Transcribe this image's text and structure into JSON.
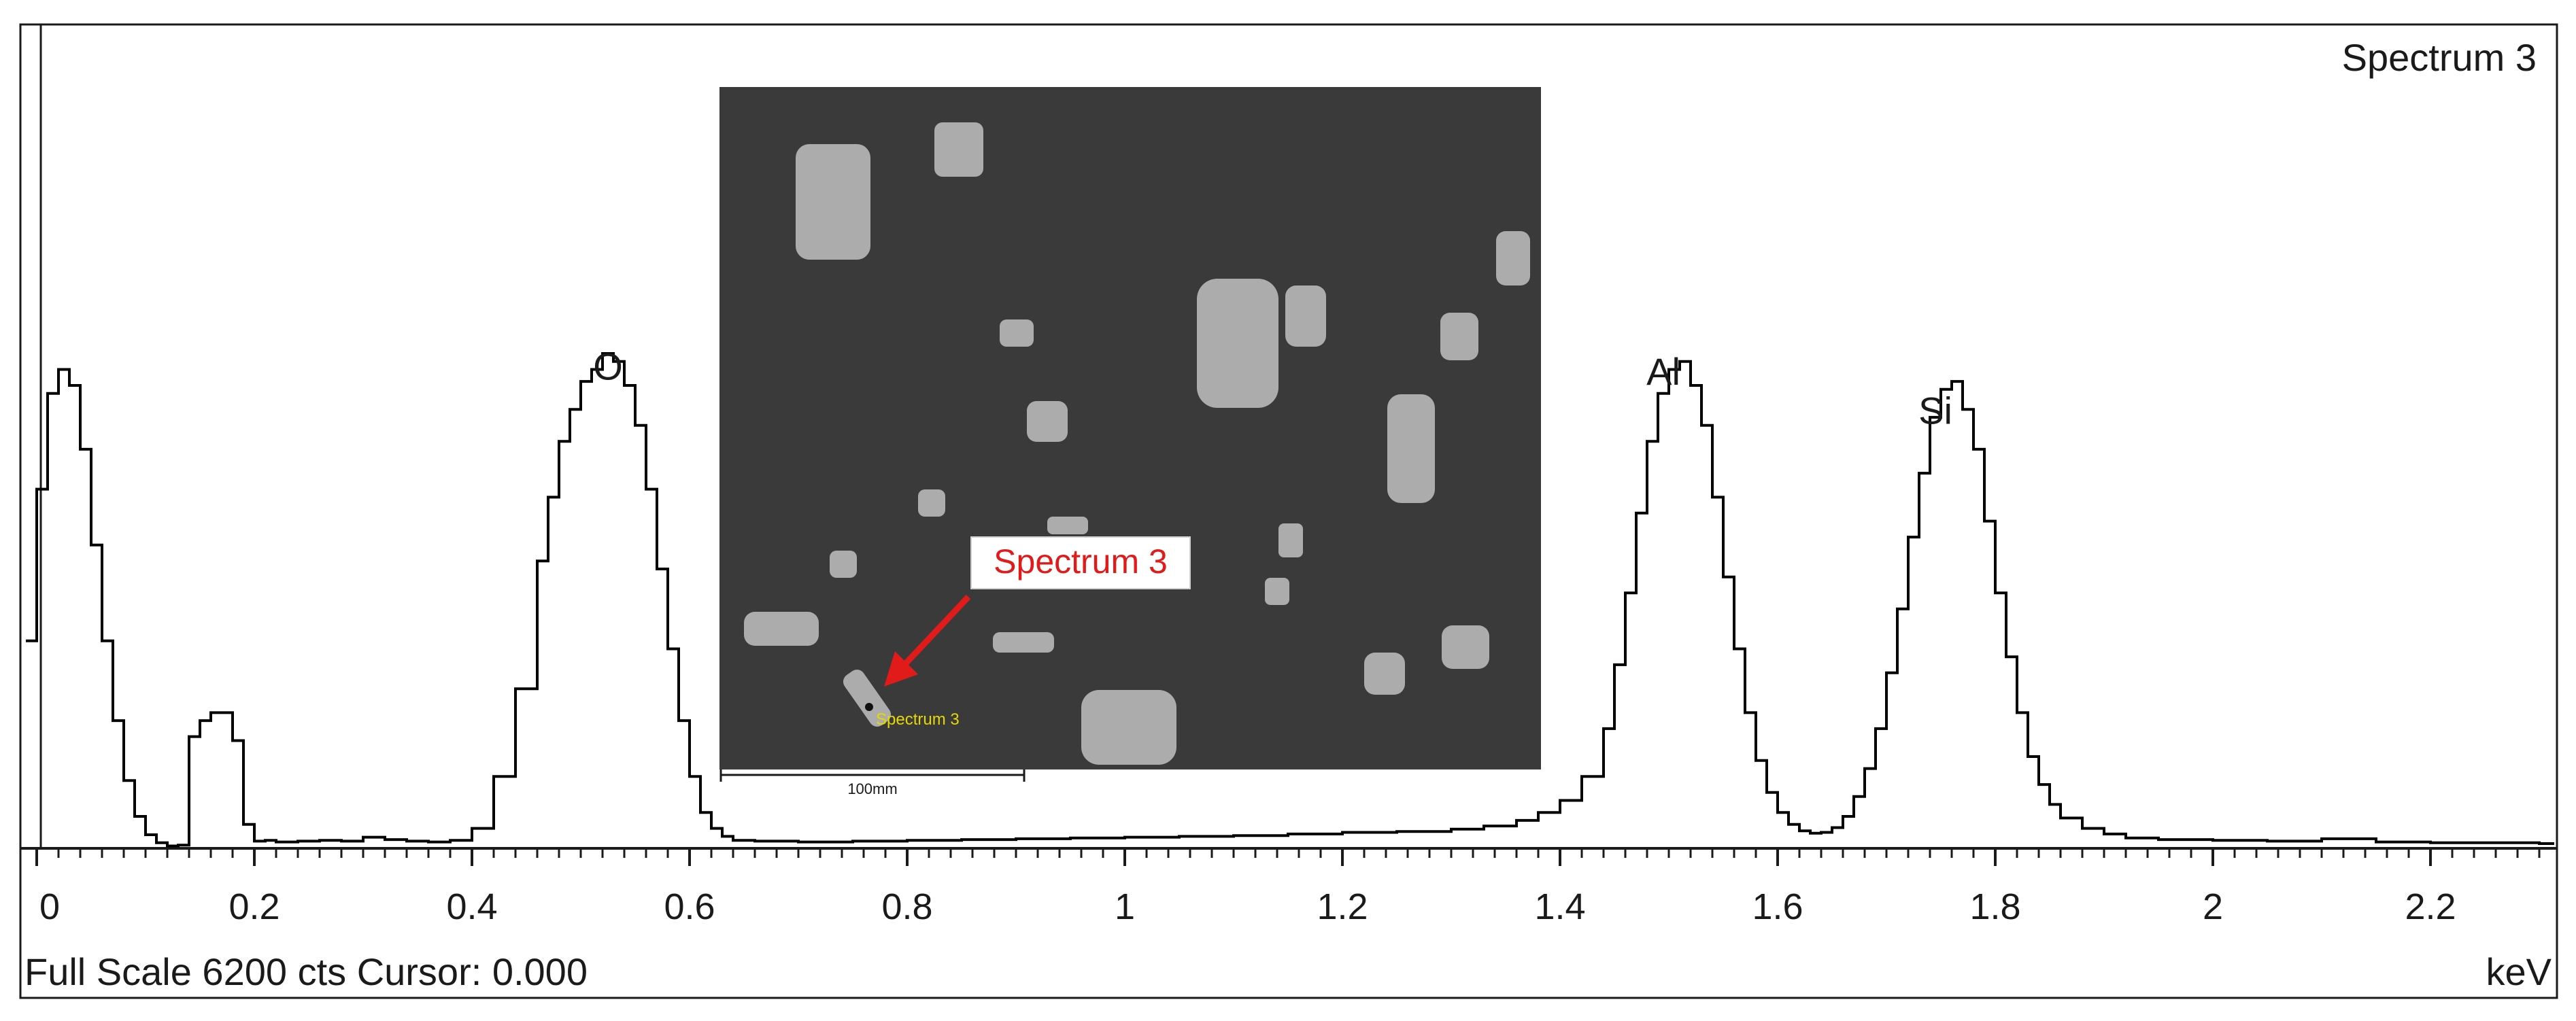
{
  "chart_data": {
    "type": "line",
    "title": "Spectrum 3",
    "xlabel": "keV",
    "ylabel": "",
    "xlim": [
      0,
      2.32
    ],
    "ylim": [
      0,
      6200
    ],
    "x_ticks": [
      "0",
      "0.2",
      "0.4",
      "0.6",
      "0.8",
      "1",
      "1.2",
      "1.4",
      "1.6",
      "1.8",
      "2",
      "2.2"
    ],
    "x_tick_values": [
      0,
      0.2,
      0.4,
      0.6,
      0.8,
      1.0,
      1.2,
      1.4,
      1.6,
      1.8,
      2.0,
      2.2
    ],
    "footer": "Full Scale 6200 cts Cursor: 0.000",
    "peak_labels": [
      {
        "text": "O",
        "x": 0.525,
        "y": 5700
      },
      {
        "text": "Al",
        "x": 1.495,
        "y": 5640
      },
      {
        "text": "Si",
        "x": 1.745,
        "y": 5150
      }
    ],
    "series": [
      {
        "x": [
          -0.01,
          0.0,
          0.01,
          0.02,
          0.03,
          0.04,
          0.05,
          0.06,
          0.07,
          0.08,
          0.09,
          0.1,
          0.11,
          0.12,
          0.13,
          0.14,
          0.15,
          0.16,
          0.17,
          0.18,
          0.19,
          0.2,
          0.21,
          0.22,
          0.24,
          0.26,
          0.28,
          0.3,
          0.32,
          0.34,
          0.36,
          0.38,
          0.4,
          0.42,
          0.44,
          0.46,
          0.47,
          0.48,
          0.49,
          0.5,
          0.51,
          0.52,
          0.53,
          0.54,
          0.55,
          0.56,
          0.57,
          0.58,
          0.59,
          0.6,
          0.61,
          0.62,
          0.63,
          0.64,
          0.66,
          0.7,
          0.75,
          0.8,
          0.85,
          0.9,
          0.95,
          1.0,
          1.05,
          1.1,
          1.15,
          1.2,
          1.25,
          1.3,
          1.33,
          1.36,
          1.38,
          1.4,
          1.42,
          1.44,
          1.45,
          1.46,
          1.47,
          1.48,
          1.49,
          1.5,
          1.51,
          1.52,
          1.53,
          1.54,
          1.55,
          1.56,
          1.57,
          1.58,
          1.59,
          1.6,
          1.61,
          1.62,
          1.63,
          1.64,
          1.65,
          1.66,
          1.67,
          1.68,
          1.69,
          1.7,
          1.71,
          1.72,
          1.73,
          1.74,
          1.75,
          1.76,
          1.77,
          1.78,
          1.79,
          1.8,
          1.81,
          1.82,
          1.83,
          1.84,
          1.85,
          1.86,
          1.88,
          1.9,
          1.92,
          1.95,
          2.0,
          2.05,
          2.1,
          2.15,
          2.2,
          2.25,
          2.3,
          2.32
        ],
        "y": [
          2600,
          4500,
          5700,
          6000,
          5800,
          5000,
          3800,
          2600,
          1600,
          850,
          400,
          170,
          70,
          30,
          40,
          1400,
          1600,
          1700,
          1700,
          1350,
          300,
          90,
          100,
          80,
          90,
          100,
          90,
          140,
          110,
          90,
          80,
          100,
          250,
          900,
          2000,
          3600,
          4400,
          5100,
          5500,
          5850,
          6000,
          6200,
          6100,
          5800,
          5300,
          4500,
          3500,
          2500,
          1600,
          900,
          450,
          250,
          150,
          100,
          90,
          80,
          90,
          100,
          110,
          120,
          130,
          140,
          150,
          160,
          180,
          200,
          210,
          240,
          280,
          350,
          450,
          600,
          900,
          1500,
          2300,
          3200,
          4200,
          5100,
          5700,
          6000,
          6100,
          5800,
          5300,
          4400,
          3400,
          2500,
          1700,
          1100,
          700,
          450,
          300,
          220,
          190,
          200,
          260,
          400,
          650,
          1000,
          1500,
          2200,
          3000,
          3900,
          4700,
          5400,
          5750,
          5850,
          5500,
          5000,
          4100,
          3200,
          2400,
          1700,
          1150,
          800,
          550,
          380,
          250,
          180,
          130,
          110,
          100,
          90,
          120,
          80,
          70,
          70,
          60,
          60
        ]
      }
    ],
    "grid": false,
    "legend": "none"
  },
  "inset": {
    "callout": "Spectrum 3",
    "point_label": "Spectrum 3",
    "scale_label": "100mm"
  }
}
